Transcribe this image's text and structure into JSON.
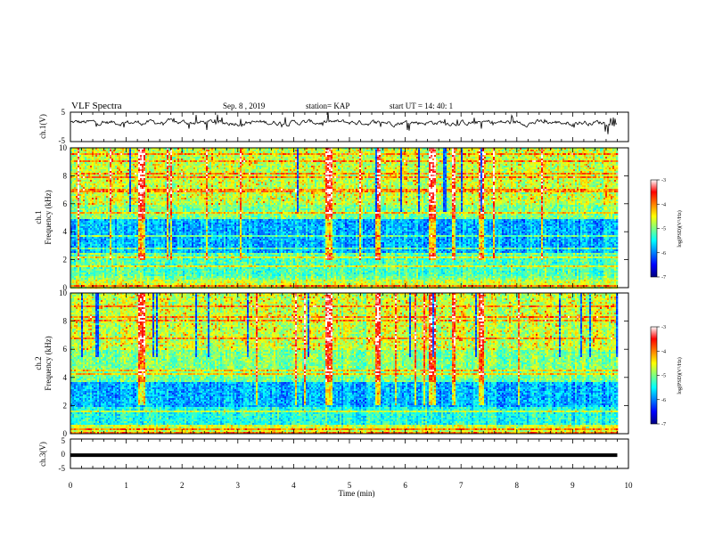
{
  "header": {
    "title": "VLF Spectra",
    "date": "Sep. 8  , 2019",
    "station": "station= KAP",
    "start_ut": "start  UT =   14: 40: 1"
  },
  "chart_data": [
    {
      "id": "ch1-waveform",
      "type": "line",
      "ylabel": "ch.1(V)",
      "ylim": [
        -5,
        5
      ],
      "yticks": [
        "5",
        "-5"
      ],
      "xlim": [
        0,
        10
      ],
      "series_color": "#000000",
      "approx_level_V": 1.5,
      "noise_amplitude_V": 1.5
    },
    {
      "id": "ch1-spectrogram",
      "type": "heatmap",
      "ylabel": [
        "ch.1",
        "Frequency (kHz)"
      ],
      "ylim": [
        0,
        10
      ],
      "yticks": [
        "0",
        "2",
        "4",
        "6",
        "8",
        "10"
      ],
      "xlim": [
        0,
        10
      ],
      "data_end_min": 9.8,
      "colorbar": {
        "label": "log(PSD)(V²/Hz)",
        "range": [
          -7,
          -3
        ],
        "ticks": [
          "-3",
          "-4",
          "-5",
          "-6",
          "-7"
        ],
        "colors": [
          "#00007f",
          "#0000ff",
          "#0080ff",
          "#00ffff",
          "#80ff80",
          "#ffff00",
          "#ff8000",
          "#ff0000",
          "#ffffff"
        ]
      },
      "features": {
        "quiet_band_kHz": [
          2.5,
          4.9
        ],
        "quiet_dip_kHz": 2.2,
        "bright_vertical_events_min": [
          1.25,
          1.3,
          4.6,
          4.65,
          5.5,
          6.45,
          6.85,
          7.35
        ]
      }
    },
    {
      "id": "ch2-spectrogram",
      "type": "heatmap",
      "ylabel": [
        "ch.2",
        "Frequency (kHz)"
      ],
      "ylim": [
        0,
        10
      ],
      "yticks": [
        "0",
        "2",
        "4",
        "6",
        "8",
        "10"
      ],
      "xlim": [
        0,
        10
      ],
      "data_end_min": 9.8,
      "colorbar": {
        "label": "log(PSD)(V²/Hz)",
        "range": [
          -7,
          -3
        ],
        "ticks": [
          "-3",
          "-4",
          "-5",
          "-6",
          "-7"
        ],
        "colors": [
          "#00007f",
          "#0000ff",
          "#0080ff",
          "#00ffff",
          "#80ff80",
          "#ffff00",
          "#ff8000",
          "#ff0000",
          "#ffffff"
        ]
      },
      "features": {
        "quiet_band_kHz": [
          1.9,
          4.0
        ],
        "bright_vertical_events_min": [
          1.25,
          1.3,
          4.6,
          4.65,
          5.5,
          6.45,
          6.85,
          7.35
        ]
      }
    },
    {
      "id": "ch3-waveform",
      "type": "line",
      "ylabel": "ch.3(V)",
      "ylim": [
        -5,
        5
      ],
      "yticks": [
        "5",
        "0",
        "-5"
      ],
      "xlim": [
        0,
        10
      ],
      "series_color": "#000000",
      "constant_value_V": -0.5,
      "xlabel": "Time  (min)",
      "xticks": [
        "0",
        "1",
        "2",
        "3",
        "4",
        "5",
        "6",
        "7",
        "8",
        "9",
        "10"
      ]
    }
  ]
}
